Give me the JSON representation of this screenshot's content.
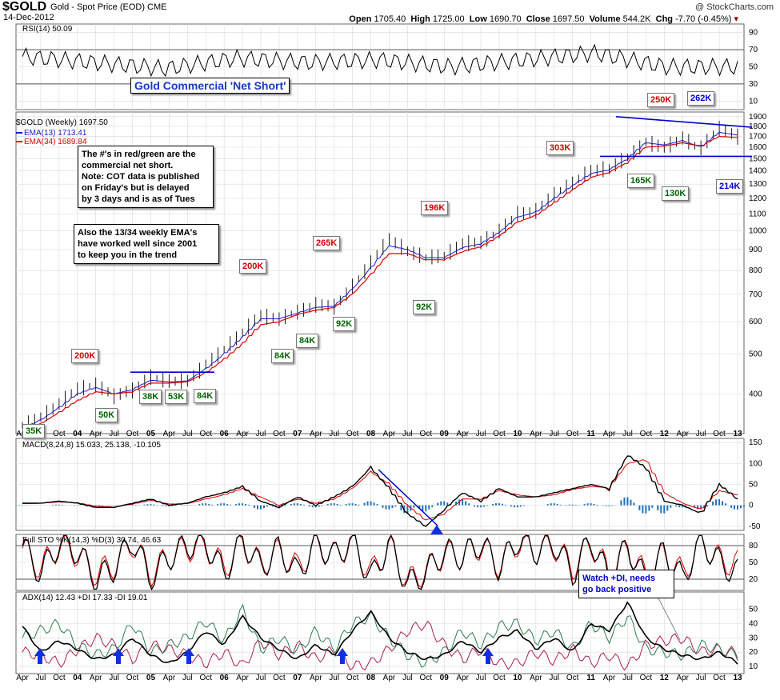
{
  "header": {
    "symbol": "$GOLD",
    "subtitle": "Gold - Spot Price (EOD)  CME",
    "date": "14-Dec-2012",
    "brand": "@ StockCharts.com",
    "open_label": "Open",
    "open": "1705.40",
    "high_label": "High",
    "high": "1725.00",
    "low_label": "Low",
    "low": "1690.70",
    "close_label": "Close",
    "close": "1697.50",
    "volume_label": "Volume",
    "volume": "544.2K",
    "chg_label": "Chg",
    "chg": "-7.70 (-0.45%)"
  },
  "annotations": {
    "title": "Gold Commercial 'Net Short'",
    "note1": "The #'s in red/green are the\ncommercial net short.\nNote: COT data is published\non Friday's but is delayed\nby 3 days and is as of Tues",
    "note2": "Also the 13/34 weekly EMA's\nhave worked well since 2001\nto keep you in the trend",
    "note3": "Watch +DI, needs\ngo back positive"
  },
  "callouts": [
    {
      "text": "35K",
      "color": "green"
    },
    {
      "text": "200K",
      "color": "red"
    },
    {
      "text": "50K",
      "color": "green"
    },
    {
      "text": "38K",
      "color": "green"
    },
    {
      "text": "53K",
      "color": "green"
    },
    {
      "text": "84K",
      "color": "green"
    },
    {
      "text": "200K",
      "color": "red"
    },
    {
      "text": "84K",
      "color": "green"
    },
    {
      "text": "84K",
      "color": "green"
    },
    {
      "text": "92K",
      "color": "green"
    },
    {
      "text": "265K",
      "color": "red"
    },
    {
      "text": "196K",
      "color": "red"
    },
    {
      "text": "92K",
      "color": "green"
    },
    {
      "text": "303K",
      "color": "red"
    },
    {
      "text": "250K",
      "color": "red"
    },
    {
      "text": "262K",
      "color": "blue"
    },
    {
      "text": "165K",
      "color": "green"
    },
    {
      "text": "130K",
      "color": "green"
    },
    {
      "text": "214K",
      "color": "blue"
    }
  ],
  "colors": {
    "price_bar": "#000000",
    "ema13": "#1a1acc",
    "ema34": "#e00000",
    "trendline": "#0000cc",
    "hist": "#1f6fbf",
    "di_plus": "#2e7d4f",
    "di_minus": "#b0204a",
    "grid": "#d9d9d9"
  },
  "chart_data": [
    {
      "type": "line",
      "name": "RSI(14)",
      "label": "RSI(14) 50.09",
      "y_ticks": [
        10,
        30,
        50,
        70,
        90
      ],
      "ylim": [
        0,
        100
      ],
      "reference_lines": [
        30,
        70
      ],
      "x": [
        "2003-04",
        "2004-01",
        "2005-01",
        "2006-01",
        "2007-01",
        "2008-01",
        "2009-01",
        "2010-01",
        "2011-01",
        "2012-01",
        "2012-12"
      ],
      "values": [
        62,
        55,
        48,
        60,
        55,
        58,
        50,
        58,
        66,
        50,
        50
      ]
    },
    {
      "type": "line",
      "name": "$GOLD (Weekly)",
      "legend": [
        "$GOLD (Weekly) 1697.50",
        "EMA(13) 1713.41",
        "EMA(34) 1689.84"
      ],
      "scale": "log",
      "y_ticks": [
        400,
        500,
        600,
        700,
        800,
        900,
        1000,
        1100,
        1200,
        1300,
        1400,
        1500,
        1600,
        1700,
        1800,
        1900
      ],
      "ylim": [
        320,
        1950
      ],
      "x_labels": [
        "Apr",
        "Jul",
        "Oct",
        "04",
        "Apr",
        "Jul",
        "Oct",
        "05",
        "Apr",
        "Jul",
        "Oct",
        "06",
        "Apr",
        "Jul",
        "Oct",
        "07",
        "Apr",
        "Jul",
        "Oct",
        "08",
        "Apr",
        "Jul",
        "Oct",
        "09",
        "Apr",
        "Jul",
        "Oct",
        "10",
        "Apr",
        "Jul",
        "Oct",
        "11",
        "Apr",
        "Jul",
        "Oct",
        "12",
        "Apr",
        "Jul",
        "Oct",
        "13"
      ],
      "x": [
        "2003-03",
        "2003-06",
        "2003-09",
        "2003-12",
        "2004-03",
        "2004-06",
        "2004-09",
        "2004-12",
        "2005-03",
        "2005-06",
        "2005-09",
        "2005-12",
        "2006-03",
        "2006-06",
        "2006-09",
        "2006-12",
        "2007-03",
        "2007-06",
        "2007-09",
        "2007-12",
        "2008-03",
        "2008-06",
        "2008-09",
        "2008-12",
        "2009-03",
        "2009-06",
        "2009-09",
        "2009-12",
        "2010-03",
        "2010-06",
        "2010-09",
        "2010-12",
        "2011-03",
        "2011-06",
        "2011-09",
        "2011-12",
        "2012-03",
        "2012-06",
        "2012-09",
        "2012-12"
      ],
      "series": [
        {
          "name": "$GOLD",
          "values": [
            335,
            350,
            375,
            410,
            420,
            395,
            410,
            440,
            430,
            430,
            470,
            510,
            560,
            620,
            610,
            635,
            660,
            655,
            730,
            830,
            950,
            890,
            860,
            870,
            930,
            940,
            1000,
            1100,
            1110,
            1220,
            1300,
            1400,
            1420,
            1520,
            1650,
            1600,
            1680,
            1580,
            1770,
            1697.5
          ]
        },
        {
          "name": "EMA(13)",
          "values": [
            330,
            345,
            370,
            400,
            415,
            400,
            410,
            432,
            428,
            430,
            460,
            500,
            550,
            610,
            610,
            630,
            650,
            655,
            720,
            810,
            920,
            900,
            860,
            860,
            910,
            930,
            990,
            1080,
            1110,
            1200,
            1290,
            1380,
            1410,
            1500,
            1640,
            1620,
            1660,
            1600,
            1740,
            1713.41
          ]
        },
        {
          "name": "EMA(34)",
          "values": [
            320,
            338,
            360,
            385,
            405,
            400,
            405,
            425,
            425,
            428,
            450,
            485,
            530,
            590,
            600,
            625,
            640,
            650,
            700,
            780,
            880,
            880,
            850,
            850,
            890,
            915,
            970,
            1050,
            1090,
            1170,
            1260,
            1350,
            1390,
            1470,
            1600,
            1610,
            1640,
            1610,
            1700,
            1689.84
          ]
        }
      ],
      "trendlines": [
        {
          "from": [
            "2003-03",
            1900
          ],
          "to": [
            "2012-12",
            1800
          ]
        },
        {
          "level": 1520
        }
      ]
    },
    {
      "type": "line",
      "name": "MACD(8,24,8)",
      "label": "MACD(8,24,8) 15.033, 25.138, -10.105",
      "y_ticks": [
        -50,
        0,
        50,
        100,
        150
      ],
      "ylim": [
        -60,
        160
      ],
      "series": [
        {
          "name": "MACD",
          "values": [
            5,
            5,
            10,
            5,
            -5,
            -5,
            5,
            15,
            0,
            5,
            20,
            30,
            45,
            10,
            -5,
            20,
            0,
            20,
            45,
            90,
            40,
            -20,
            -50,
            -10,
            30,
            10,
            40,
            20,
            20,
            30,
            40,
            50,
            40,
            120,
            90,
            10,
            0,
            -20,
            50,
            15.033
          ]
        },
        {
          "name": "Signal",
          "values": [
            4,
            5,
            8,
            6,
            -2,
            -4,
            3,
            12,
            3,
            4,
            15,
            25,
            40,
            20,
            0,
            15,
            5,
            15,
            40,
            80,
            50,
            0,
            -35,
            -20,
            15,
            15,
            35,
            25,
            20,
            25,
            38,
            45,
            42,
            100,
            110,
            30,
            5,
            -10,
            35,
            25.138
          ]
        },
        {
          "name": "Histogram",
          "values": [
            1,
            0,
            2,
            -1,
            -3,
            -1,
            2,
            3,
            -3,
            1,
            5,
            5,
            5,
            -10,
            -5,
            5,
            -5,
            5,
            5,
            10,
            -10,
            -20,
            -15,
            10,
            15,
            -5,
            5,
            -5,
            0,
            5,
            2,
            5,
            -2,
            20,
            -20,
            -20,
            -5,
            -10,
            15,
            -10.105
          ]
        }
      ]
    },
    {
      "type": "line",
      "name": "Full STO %K(14,3) %D(3)",
      "label": "Full STO %K(14,3) %D(3) 30.74, 46.63",
      "y_ticks": [
        20,
        50,
        80
      ],
      "ylim": [
        0,
        100
      ],
      "reference_lines": [
        20,
        80
      ],
      "series": [
        {
          "name": "%K",
          "values": [
            80,
            30,
            85,
            70,
            20,
            40,
            90,
            20,
            60,
            80,
            85,
            30,
            90,
            40,
            75,
            30,
            85,
            60,
            90,
            20,
            85,
            10,
            30,
            70,
            60,
            85,
            40,
            90,
            70,
            85,
            30,
            90,
            20,
            80,
            15,
            70,
            20,
            90,
            50,
            30.74
          ]
        },
        {
          "name": "%D",
          "values": [
            75,
            40,
            80,
            65,
            30,
            45,
            85,
            30,
            60,
            75,
            80,
            40,
            85,
            45,
            70,
            40,
            80,
            62,
            85,
            30,
            80,
            15,
            35,
            65,
            62,
            80,
            45,
            85,
            70,
            80,
            40,
            85,
            30,
            75,
            25,
            65,
            30,
            85,
            55,
            46.63
          ]
        }
      ]
    },
    {
      "type": "line",
      "name": "ADX(14)",
      "label": "ADX(14) 12.43  +DI 17.33  -DI 19.01",
      "y_ticks": [
        10,
        20,
        30,
        40,
        50
      ],
      "ylim": [
        5,
        62
      ],
      "series": [
        {
          "name": "ADX",
          "values": [
            38,
            20,
            28,
            22,
            15,
            18,
            30,
            18,
            12,
            20,
            35,
            25,
            45,
            30,
            22,
            15,
            25,
            18,
            35,
            48,
            30,
            20,
            15,
            18,
            28,
            20,
            30,
            35,
            22,
            30,
            20,
            40,
            35,
            55,
            30,
            22,
            18,
            15,
            20,
            12.43
          ]
        },
        {
          "name": "+DI",
          "values": [
            30,
            35,
            40,
            25,
            18,
            22,
            40,
            20,
            25,
            30,
            42,
            28,
            50,
            22,
            30,
            20,
            35,
            22,
            40,
            45,
            30,
            18,
            12,
            20,
            35,
            25,
            38,
            40,
            28,
            35,
            22,
            40,
            30,
            45,
            22,
            20,
            18,
            25,
            22,
            17.33
          ]
        },
        {
          "name": "-DI",
          "values": [
            20,
            18,
            12,
            22,
            30,
            25,
            15,
            25,
            22,
            18,
            12,
            20,
            10,
            28,
            18,
            25,
            15,
            22,
            10,
            12,
            22,
            35,
            40,
            25,
            15,
            22,
            12,
            12,
            20,
            14,
            22,
            12,
            18,
            10,
            25,
            28,
            30,
            20,
            22,
            19.01
          ]
        }
      ]
    }
  ]
}
